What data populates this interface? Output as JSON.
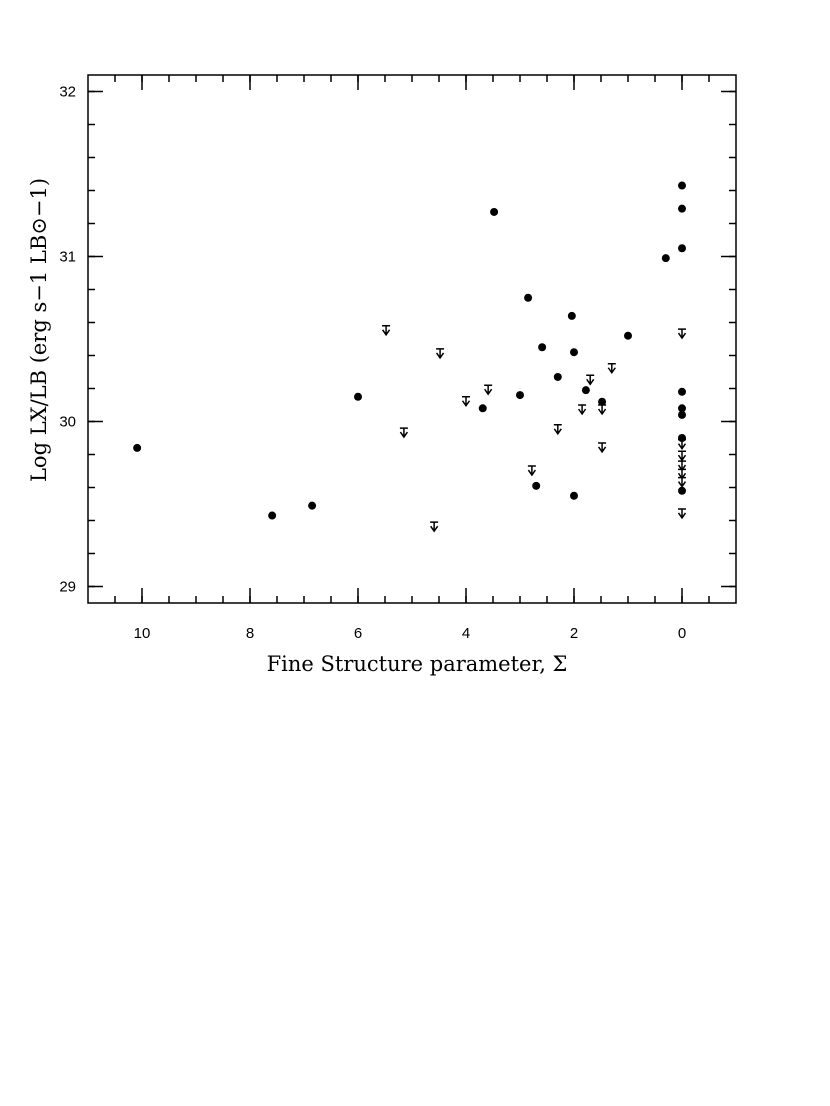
{
  "chart_data": {
    "type": "scatter",
    "x_label": "Fine Structure parameter, Σ",
    "y_label": "Log LX/LB (erg s−1 LB⊙−1)",
    "xlim": [
      11,
      -1
    ],
    "ylim": [
      28.9,
      32.1
    ],
    "xticks": [
      10,
      8,
      6,
      4,
      2,
      0
    ],
    "xminor_ticks": [
      10.5,
      10,
      9.5,
      9,
      8.5,
      8,
      7.5,
      7,
      6.5,
      6,
      5.5,
      5,
      4.5,
      4,
      3.5,
      3,
      2.5,
      2,
      1.5,
      1,
      0.5,
      0,
      -0.5
    ],
    "yticks": [
      29,
      30,
      31,
      32
    ],
    "yminor_ticks": [
      29,
      29.2,
      29.4,
      29.6,
      29.8,
      30,
      30.2,
      30.4,
      30.6,
      30.8,
      31,
      31.2,
      31.4,
      31.6,
      31.8,
      32
    ],
    "series": [
      {
        "marker": "dot",
        "color": "#000000",
        "x": [
          10.09,
          7.59,
          6.85,
          6.0,
          3.48,
          2.85,
          2.59,
          2.04,
          2.0,
          2.3,
          3.0,
          3.69,
          2.7,
          2.0,
          1.78,
          1.48,
          1.0,
          0.3,
          0,
          0,
          0,
          0,
          0,
          0,
          0,
          0
        ],
        "values": [
          29.84,
          29.43,
          29.49,
          30.15,
          31.27,
          30.75,
          30.45,
          30.64,
          30.42,
          30.27,
          30.16,
          30.08,
          29.61,
          29.55,
          30.19,
          30.12,
          30.52,
          30.99,
          31.43,
          31.29,
          31.05,
          30.18,
          30.08,
          30.04,
          29.9,
          29.58
        ]
      },
      {
        "marker": "upper-limit",
        "color": "#000000",
        "x": [
          5.48,
          4.48,
          5.15,
          4.0,
          3.59,
          4.59,
          2.78,
          2.3,
          1.7,
          1.3,
          1.85,
          1.48,
          1.48,
          0,
          0,
          0,
          0,
          0,
          0,
          0
        ],
        "values": [
          30.58,
          30.44,
          29.96,
          30.15,
          30.22,
          29.39,
          29.73,
          29.98,
          30.28,
          30.35,
          30.1,
          30.1,
          29.87,
          30.56,
          29.89,
          29.82,
          29.76,
          29.71,
          29.66,
          29.47
        ]
      }
    ]
  }
}
